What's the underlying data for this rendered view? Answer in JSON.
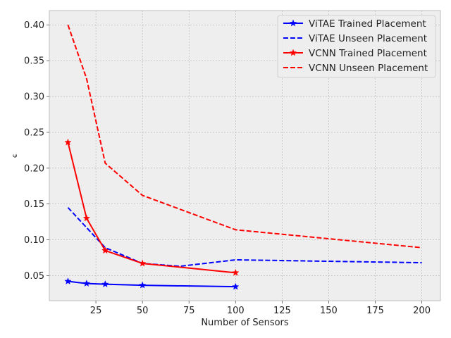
{
  "chart_data": {
    "type": "line",
    "title": "",
    "xlabel": "Number of Sensors",
    "ylabel": "ϵ",
    "xlim": [
      0,
      210
    ],
    "ylim": [
      0.015,
      0.42
    ],
    "xticks": [
      25,
      50,
      75,
      100,
      125,
      150,
      175,
      200
    ],
    "yticks": [
      0.05,
      0.1,
      0.15,
      0.2,
      0.25,
      0.3,
      0.35,
      0.4
    ],
    "xtick_labels": [
      "25",
      "50",
      "75",
      "100",
      "125",
      "150",
      "175",
      "200"
    ],
    "ytick_labels": [
      "0.05",
      "0.10",
      "0.15",
      "0.20",
      "0.25",
      "0.30",
      "0.35",
      "0.40"
    ],
    "grid": true,
    "legend_position": "top-right",
    "series": [
      {
        "name": "ViTAE Trained Placement",
        "color": "#0000ff",
        "style": "solid",
        "marker": "star",
        "x": [
          10,
          20,
          30,
          50,
          100
        ],
        "y": [
          0.042,
          0.039,
          0.038,
          0.0365,
          0.0345
        ]
      },
      {
        "name": "ViTAE Unseen Placement",
        "color": "#0000ff",
        "style": "dashed",
        "marker": "none",
        "x": [
          10,
          20,
          30,
          50,
          70,
          100,
          200
        ],
        "y": [
          0.145,
          0.117,
          0.089,
          0.067,
          0.063,
          0.072,
          0.068
        ]
      },
      {
        "name": "VCNN Trained Placement",
        "color": "#ff0000",
        "style": "solid",
        "marker": "star",
        "x": [
          10,
          20,
          30,
          50,
          100
        ],
        "y": [
          0.236,
          0.13,
          0.085,
          0.067,
          0.054
        ]
      },
      {
        "name": "VCNN Unseen Placement",
        "color": "#ff0000",
        "style": "dashed",
        "marker": "none",
        "x": [
          10,
          20,
          30,
          50,
          100,
          200
        ],
        "y": [
          0.4,
          0.325,
          0.207,
          0.162,
          0.114,
          0.089
        ]
      }
    ]
  }
}
